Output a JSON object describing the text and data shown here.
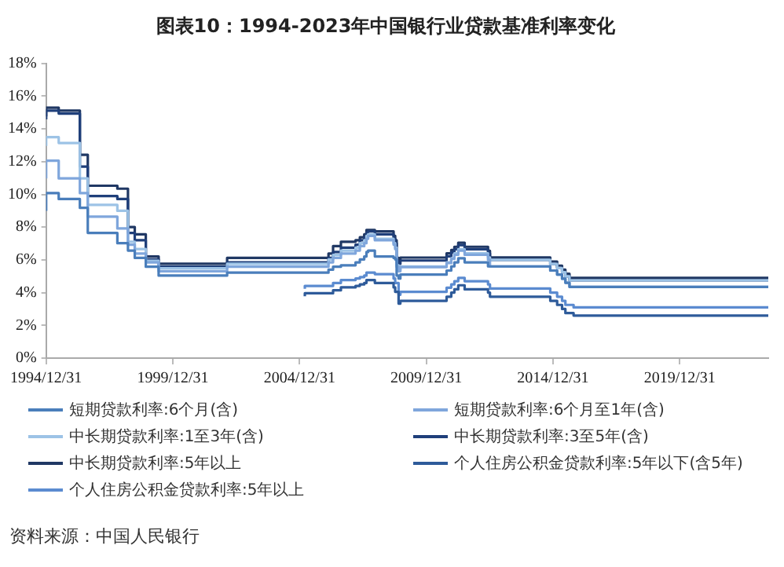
{
  "chart_data": {
    "type": "step",
    "title": "图表10：1994-2023年中国银行业贷款基准利率变化",
    "annotations": [
      "资料来源：中国人民银行"
    ],
    "x": [
      "1995-01-01",
      "1995-07-01",
      "1996-05-01",
      "1996-08-23",
      "1997-10-23",
      "1998-03-25",
      "1998-07-01",
      "1998-12-07",
      "1999-06-10",
      "2002-02-21",
      "2004-10-29",
      "2005-03-17",
      "2006-02-21",
      "2006-04-28",
      "2006-08-19",
      "2007-03-18",
      "2007-05-19",
      "2007-07-21",
      "2007-08-22",
      "2007-09-15",
      "2007-12-21",
      "2008-09-16",
      "2008-10-09",
      "2008-10-30",
      "2008-11-27",
      "2008-12-23",
      "2010-10-20",
      "2010-12-26",
      "2011-02-09",
      "2011-04-06",
      "2011-07-07",
      "2012-06-08",
      "2012-07-06",
      "2014-11-22",
      "2015-03-01",
      "2015-05-11",
      "2015-06-28",
      "2015-08-26",
      "2015-10-24",
      "2022-10-01",
      "2023-06-30"
    ],
    "series": [
      {
        "name": "短期贷款利率:6个月(含)",
        "color": "#4a7ebb",
        "values": [
          9.0,
          10.08,
          9.72,
          9.18,
          7.65,
          7.02,
          6.57,
          6.12,
          5.58,
          5.04,
          5.22,
          5.22,
          5.22,
          5.4,
          5.58,
          5.67,
          5.85,
          6.03,
          6.21,
          6.48,
          6.57,
          6.21,
          6.12,
          6.03,
          5.04,
          4.86,
          5.1,
          5.35,
          5.6,
          5.85,
          6.1,
          5.85,
          5.6,
          5.6,
          5.35,
          5.1,
          4.85,
          4.6,
          4.35,
          4.35,
          4.35
        ]
      },
      {
        "name": "短期贷款利率:6个月至1年(含)",
        "color": "#7fa6dc",
        "values": [
          10.98,
          12.06,
          10.98,
          10.08,
          8.64,
          7.92,
          6.93,
          6.39,
          5.85,
          5.31,
          5.58,
          5.58,
          5.58,
          5.85,
          6.12,
          6.39,
          6.57,
          6.84,
          7.02,
          7.29,
          7.47,
          7.2,
          6.93,
          6.66,
          5.58,
          5.31,
          5.56,
          5.81,
          6.06,
          6.31,
          6.56,
          6.31,
          6.0,
          5.6,
          5.35,
          5.1,
          4.85,
          4.6,
          4.35,
          4.35,
          4.35
        ]
      },
      {
        "name": "中长期贷款利率:1至3年(含)",
        "color": "#9dc3e6",
        "values": [
          12.96,
          13.5,
          13.14,
          10.98,
          9.36,
          9.0,
          7.11,
          6.66,
          5.94,
          5.49,
          5.76,
          5.76,
          5.76,
          6.03,
          6.3,
          6.57,
          6.75,
          7.02,
          7.2,
          7.47,
          7.56,
          7.29,
          7.02,
          6.75,
          5.67,
          5.4,
          5.6,
          5.85,
          6.1,
          6.4,
          6.65,
          6.4,
          6.15,
          6.0,
          5.75,
          5.5,
          5.25,
          5.0,
          4.75,
          4.75,
          4.75
        ]
      },
      {
        "name": "中长期贷款利率:3至5年(含)",
        "color": "#1f3f7a",
        "values": [
          14.58,
          15.12,
          14.94,
          11.7,
          9.9,
          9.72,
          7.65,
          7.2,
          6.03,
          5.58,
          5.85,
          5.85,
          5.85,
          6.12,
          6.48,
          6.75,
          6.93,
          7.2,
          7.38,
          7.65,
          7.74,
          7.56,
          7.29,
          7.02,
          5.94,
          5.76,
          5.96,
          6.22,
          6.45,
          6.65,
          6.9,
          6.65,
          6.4,
          6.0,
          5.75,
          5.5,
          5.25,
          5.0,
          4.75,
          4.75,
          4.75
        ]
      },
      {
        "name": "中长期贷款利率:5年以上",
        "color": "#203864",
        "values": [
          14.76,
          15.3,
          15.12,
          12.42,
          10.53,
          10.35,
          8.01,
          7.56,
          6.21,
          5.76,
          6.12,
          6.12,
          6.12,
          6.39,
          6.84,
          7.11,
          7.2,
          7.38,
          7.56,
          7.83,
          7.83,
          7.74,
          7.47,
          7.2,
          6.12,
          5.94,
          6.14,
          6.4,
          6.6,
          6.8,
          7.05,
          6.8,
          6.55,
          6.15,
          5.9,
          5.65,
          5.4,
          5.15,
          4.9,
          4.9,
          4.9
        ]
      },
      {
        "name": "个人住房公积金贷款利率:5年以下(含5年)",
        "color": "#2e5b9a",
        "values": [
          null,
          null,
          null,
          null,
          null,
          null,
          null,
          null,
          null,
          null,
          null,
          3.78,
          3.96,
          3.96,
          4.14,
          4.32,
          4.41,
          4.5,
          4.59,
          4.77,
          4.77,
          4.59,
          4.32,
          4.05,
          4.05,
          3.33,
          3.5,
          3.75,
          4.0,
          4.2,
          4.45,
          4.2,
          4.0,
          3.75,
          3.5,
          3.25,
          3.0,
          2.75,
          2.75,
          2.6,
          2.6
        ]
      },
      {
        "name": "个人住房公积金贷款利率:5年以上",
        "color": "#5b8bd0",
        "values": [
          null,
          null,
          null,
          null,
          null,
          null,
          null,
          null,
          null,
          null,
          null,
          4.23,
          4.41,
          4.41,
          4.59,
          4.77,
          4.86,
          4.95,
          5.04,
          5.22,
          5.22,
          5.13,
          4.86,
          4.59,
          4.59,
          3.87,
          4.05,
          4.3,
          4.5,
          4.7,
          4.9,
          4.7,
          4.5,
          4.25,
          4.0,
          3.75,
          3.5,
          3.25,
          3.25,
          3.1,
          3.1
        ]
      }
    ],
    "xlim": [
      "1994-12-31",
      "2023-06-30"
    ],
    "xticks": [
      {
        "value": "1994-12-31",
        "label": "1994/12/31"
      },
      {
        "value": "1999-12-31",
        "label": "1999/12/31"
      },
      {
        "value": "2004-12-31",
        "label": "2004/12/31"
      },
      {
        "value": "2009-12-31",
        "label": "2009/12/31"
      },
      {
        "value": "2014-12-31",
        "label": "2014/12/31"
      },
      {
        "value": "2019-12-31",
        "label": "2019/12/31"
      }
    ],
    "ylim": [
      0,
      18
    ],
    "yticks": [
      {
        "value": 0,
        "label": "0%"
      },
      {
        "value": 2,
        "label": "2%"
      },
      {
        "value": 4,
        "label": "4%"
      },
      {
        "value": 6,
        "label": "6%"
      },
      {
        "value": 8,
        "label": "8%"
      },
      {
        "value": 10,
        "label": "10%"
      },
      {
        "value": 12,
        "label": "12%"
      },
      {
        "value": 14,
        "label": "14%"
      },
      {
        "value": 16,
        "label": "16%"
      },
      {
        "value": 18,
        "label": "18%"
      }
    ],
    "grid": false,
    "legend": "bottom"
  }
}
